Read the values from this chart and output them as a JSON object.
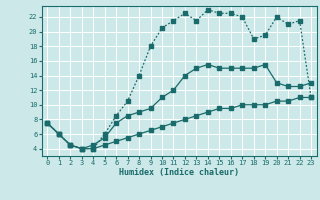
{
  "xlabel": "Humidex (Indice chaleur)",
  "bg_color": "#cce8e8",
  "grid_color": "#ffffff",
  "line_color": "#1a6b6b",
  "xlim": [
    -0.5,
    23.5
  ],
  "ylim": [
    3.0,
    23.5
  ],
  "xticks": [
    0,
    1,
    2,
    3,
    4,
    5,
    6,
    7,
    8,
    9,
    10,
    11,
    12,
    13,
    14,
    15,
    16,
    17,
    18,
    19,
    20,
    21,
    22,
    23
  ],
  "yticks": [
    4,
    6,
    8,
    10,
    12,
    14,
    16,
    18,
    20,
    22
  ],
  "line1_x": [
    0,
    1,
    2,
    3,
    4,
    5,
    6,
    7,
    8,
    9,
    10,
    11,
    12,
    13,
    14,
    15,
    16,
    17,
    18,
    19,
    20,
    21,
    22,
    23
  ],
  "line1_y": [
    7.5,
    6.0,
    4.5,
    4.0,
    4.0,
    4.5,
    5.0,
    5.5,
    6.0,
    6.5,
    7.0,
    7.5,
    8.0,
    8.5,
    9.0,
    9.5,
    9.5,
    10.0,
    10.0,
    10.0,
    10.5,
    10.5,
    11.0,
    11.0
  ],
  "line2_x": [
    0,
    1,
    2,
    3,
    4,
    5,
    6,
    7,
    8,
    9,
    10,
    11,
    12,
    13,
    14,
    15,
    16,
    17,
    18,
    19,
    20,
    21,
    22,
    23
  ],
  "line2_y": [
    7.5,
    6.0,
    4.5,
    4.0,
    4.5,
    5.5,
    7.5,
    8.5,
    9.0,
    9.5,
    11.0,
    12.0,
    14.0,
    15.0,
    15.5,
    15.0,
    15.0,
    15.0,
    15.0,
    15.5,
    13.0,
    12.5,
    12.5,
    13.0
  ],
  "line3_x": [
    0,
    1,
    2,
    3,
    4,
    5,
    6,
    7,
    8,
    9,
    10,
    11,
    12,
    13,
    14,
    15,
    16,
    17,
    18,
    19,
    20,
    21,
    22,
    23
  ],
  "line3_y": [
    7.5,
    6.0,
    4.5,
    4.0,
    4.0,
    6.0,
    8.5,
    10.5,
    14.0,
    18.0,
    20.5,
    21.5,
    22.5,
    21.5,
    23.0,
    22.5,
    22.5,
    22.0,
    19.0,
    19.5,
    22.0,
    21.0,
    21.5,
    11.0
  ]
}
